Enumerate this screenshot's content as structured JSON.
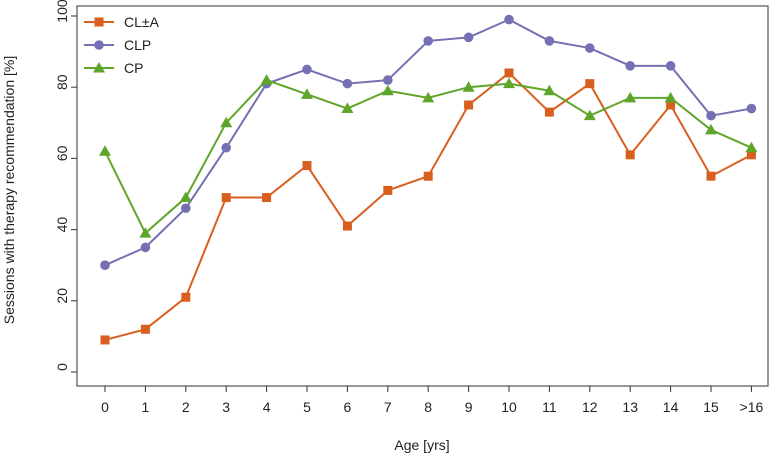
{
  "chart_data": {
    "type": "line",
    "title": "",
    "xlabel": "Age [yrs]",
    "ylabel": "Sessions with therapy recommendation [%]",
    "x": [
      "0",
      "1",
      "2",
      "3",
      "4",
      "5",
      "6",
      "7",
      "8",
      "9",
      "10",
      "11",
      "12",
      "13",
      "14",
      "15",
      ">16"
    ],
    "yticks": [
      0,
      20,
      40,
      60,
      80,
      100
    ],
    "ylim": [
      0,
      100
    ],
    "grid": false,
    "legend_position": "top-left",
    "series": [
      {
        "name": "CL±A",
        "color": "#d95f1e",
        "marker": "square",
        "values": [
          9,
          12,
          21,
          49,
          49,
          58,
          41,
          51,
          55,
          75,
          84,
          73,
          81,
          61,
          75,
          55,
          61
        ]
      },
      {
        "name": "CLP",
        "color": "#7570b3",
        "marker": "circle",
        "values": [
          30,
          35,
          46,
          63,
          81,
          85,
          81,
          82,
          93,
          94,
          99,
          93,
          91,
          86,
          86,
          72,
          74
        ]
      },
      {
        "name": "CP",
        "color": "#5fa52a",
        "marker": "triangle",
        "values": [
          62,
          39,
          49,
          70,
          82,
          78,
          74,
          79,
          77,
          80,
          81,
          79,
          72,
          77,
          77,
          68,
          63
        ]
      }
    ]
  }
}
